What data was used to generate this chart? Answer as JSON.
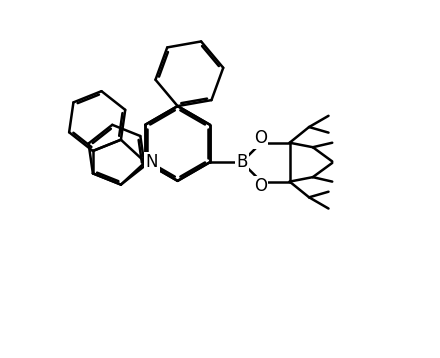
{
  "bg": "#ffffff",
  "lc": "#000000",
  "lw": 1.8,
  "fs": 12,
  "fw": 4.4,
  "fh": 3.58,
  "dpi": 100,
  "xlim": [
    0.0,
    11.0
  ],
  "ylim": [
    0.0,
    9.5
  ]
}
